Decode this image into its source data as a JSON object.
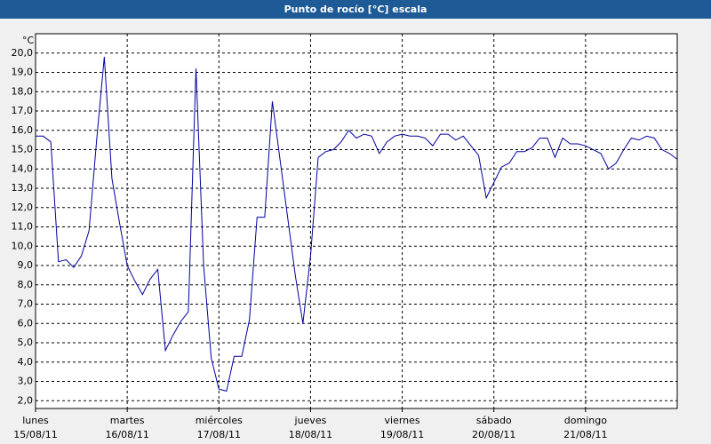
{
  "chart_data": {
    "type": "line",
    "title": "Punto de rocío [°C] escala",
    "y_unit": "°C",
    "categories": [
      "lunes",
      null,
      null,
      null,
      null,
      null,
      null,
      null,
      null,
      null,
      null,
      null,
      "martes",
      null,
      null,
      null,
      null,
      null,
      null,
      null,
      null,
      null,
      null,
      null,
      "miércoles",
      null,
      null,
      null,
      null,
      null,
      null,
      null,
      null,
      null,
      null,
      null,
      "jueves",
      null,
      null,
      null,
      null,
      null,
      null,
      null,
      null,
      null,
      null,
      null,
      "viernes",
      null,
      null,
      null,
      null,
      null,
      null,
      null,
      null,
      null,
      null,
      null,
      "sábado",
      null,
      null,
      null,
      null,
      null,
      null,
      null,
      null,
      null,
      null,
      null,
      "domingo",
      null,
      null,
      null,
      null,
      null,
      null,
      null,
      null,
      null,
      null,
      null,
      null
    ],
    "category_dates": [
      "15/08/11",
      null,
      null,
      null,
      null,
      null,
      null,
      null,
      null,
      null,
      null,
      null,
      "16/08/11",
      null,
      null,
      null,
      null,
      null,
      null,
      null,
      null,
      null,
      null,
      null,
      "17/08/11",
      null,
      null,
      null,
      null,
      null,
      null,
      null,
      null,
      null,
      null,
      null,
      "18/08/11",
      null,
      null,
      null,
      null,
      null,
      null,
      null,
      null,
      null,
      null,
      null,
      "19/08/11",
      null,
      null,
      null,
      null,
      null,
      null,
      null,
      null,
      null,
      null,
      null,
      "20/08/11",
      null,
      null,
      null,
      null,
      null,
      null,
      null,
      null,
      null,
      null,
      null,
      "21/08/11",
      null,
      null,
      null,
      null,
      null,
      null,
      null,
      null,
      null,
      null,
      null,
      null
    ],
    "series": [
      {
        "name": "Punto de rocío",
        "color": "#0000a0",
        "values": [
          15.7,
          15.7,
          15.4,
          9.2,
          9.3,
          8.9,
          9.5,
          10.8,
          15.5,
          19.8,
          13.5,
          11.2,
          9.0,
          8.2,
          7.5,
          8.3,
          8.8,
          4.6,
          5.4,
          6.1,
          6.6,
          19.2,
          9.0,
          4.2,
          2.6,
          2.5,
          4.3,
          4.3,
          6.2,
          11.5,
          11.5,
          17.5,
          14.5,
          11.5,
          8.5,
          6.0,
          9.5,
          14.6,
          14.9,
          15.0,
          15.4,
          16.0,
          15.6,
          15.8,
          15.7,
          14.8,
          15.4,
          15.7,
          15.8,
          15.7,
          15.7,
          15.6,
          15.2,
          15.8,
          15.8,
          15.5,
          15.7,
          15.2,
          14.7,
          12.5,
          13.3,
          14.1,
          14.3,
          14.9,
          14.9,
          15.1,
          15.6,
          15.6,
          14.6,
          15.6,
          15.3,
          15.3,
          15.2,
          15.0,
          14.8,
          14.0,
          14.3,
          15.0,
          15.6,
          15.5,
          15.7,
          15.6,
          15.0,
          14.8,
          14.5
        ]
      }
    ],
    "ylim": [
      1.6,
      21.0
    ],
    "yticks": [
      {
        "value": 2,
        "label": "2,0"
      },
      {
        "value": 3,
        "label": "3,0"
      },
      {
        "value": 4,
        "label": "4,0"
      },
      {
        "value": 5,
        "label": "5,0"
      },
      {
        "value": 6,
        "label": "6,0"
      },
      {
        "value": 7,
        "label": "7,0"
      },
      {
        "value": 8,
        "label": "8,0"
      },
      {
        "value": 9,
        "label": "9,0"
      },
      {
        "value": 10,
        "label": "10,0"
      },
      {
        "value": 11,
        "label": "11,0"
      },
      {
        "value": 12,
        "label": "12,0"
      },
      {
        "value": 13,
        "label": "13,0"
      },
      {
        "value": 14,
        "label": "14,0"
      },
      {
        "value": 15,
        "label": "15,0"
      },
      {
        "value": 16,
        "label": "16,0"
      },
      {
        "value": 17,
        "label": "17,0"
      },
      {
        "value": 18,
        "label": "18,0"
      },
      {
        "value": 19,
        "label": "19,0"
      },
      {
        "value": 20,
        "label": "20,0"
      }
    ],
    "grid": true
  }
}
